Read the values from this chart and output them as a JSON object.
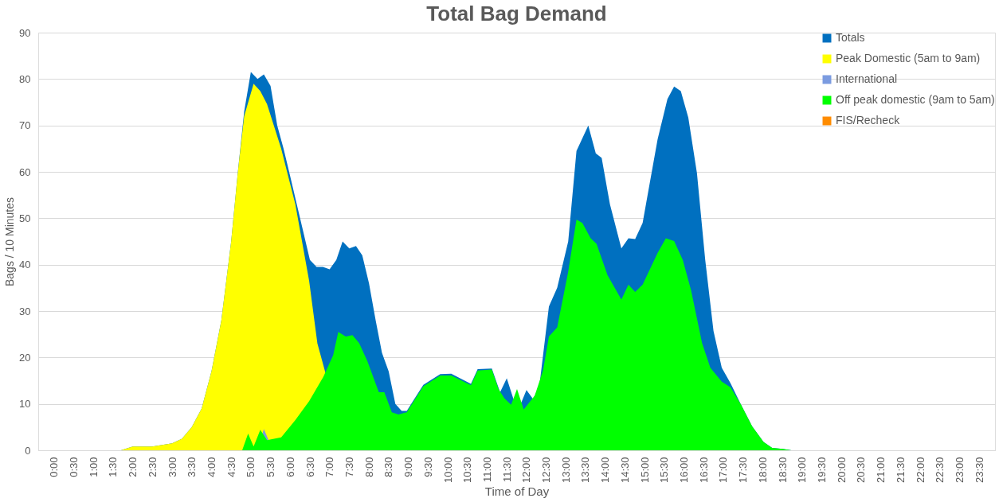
{
  "chart_data": {
    "type": "area",
    "title": "Total Bag Demand",
    "xlabel": "Time of Day",
    "ylabel": "Bags / 10 Minutes",
    "ylim": [
      0,
      90
    ],
    "yticks": [
      0,
      10,
      20,
      30,
      40,
      50,
      60,
      70,
      80,
      90
    ],
    "xlim": [
      -0.4,
      23.9
    ],
    "xticks": [
      {
        "value": 0,
        "label": "0:00"
      },
      {
        "value": 0.5,
        "label": "0:30"
      },
      {
        "value": 1,
        "label": "1:00"
      },
      {
        "value": 1.5,
        "label": "1:30"
      },
      {
        "value": 2,
        "label": "2:00"
      },
      {
        "value": 2.5,
        "label": "2:30"
      },
      {
        "value": 3,
        "label": "3:00"
      },
      {
        "value": 3.5,
        "label": "3:30"
      },
      {
        "value": 4,
        "label": "4:00"
      },
      {
        "value": 4.5,
        "label": "4:30"
      },
      {
        "value": 5,
        "label": "5:00"
      },
      {
        "value": 5.5,
        "label": "5:30"
      },
      {
        "value": 6,
        "label": "6:00"
      },
      {
        "value": 6.5,
        "label": "6:30"
      },
      {
        "value": 7,
        "label": "7:00"
      },
      {
        "value": 7.5,
        "label": "7:30"
      },
      {
        "value": 8,
        "label": "8:00"
      },
      {
        "value": 8.5,
        "label": "8:30"
      },
      {
        "value": 9,
        "label": "9:00"
      },
      {
        "value": 9.5,
        "label": "9:30"
      },
      {
        "value": 10,
        "label": "10:00"
      },
      {
        "value": 10.5,
        "label": "10:30"
      },
      {
        "value": 11,
        "label": "11:00"
      },
      {
        "value": 11.5,
        "label": "11:30"
      },
      {
        "value": 12,
        "label": "12:00"
      },
      {
        "value": 12.5,
        "label": "12:30"
      },
      {
        "value": 13,
        "label": "13:00"
      },
      {
        "value": 13.5,
        "label": "13:30"
      },
      {
        "value": 14,
        "label": "14:00"
      },
      {
        "value": 14.5,
        "label": "14:30"
      },
      {
        "value": 15,
        "label": "15:00"
      },
      {
        "value": 15.5,
        "label": "15:30"
      },
      {
        "value": 16,
        "label": "16:00"
      },
      {
        "value": 16.5,
        "label": "16:30"
      },
      {
        "value": 17,
        "label": "17:00"
      },
      {
        "value": 17.5,
        "label": "17:30"
      },
      {
        "value": 18,
        "label": "18:00"
      },
      {
        "value": 18.5,
        "label": "18:30"
      },
      {
        "value": 19,
        "label": "19:00"
      },
      {
        "value": 19.5,
        "label": "19:30"
      },
      {
        "value": 20,
        "label": "20:00"
      },
      {
        "value": 20.5,
        "label": "20:30"
      },
      {
        "value": 21,
        "label": "21:00"
      },
      {
        "value": 21.5,
        "label": "21:30"
      },
      {
        "value": 22,
        "label": "22:00"
      },
      {
        "value": 22.5,
        "label": "22:30"
      },
      {
        "value": 23,
        "label": "23:00"
      },
      {
        "value": 23.5,
        "label": "23:30"
      }
    ],
    "grid": "y",
    "legend": "top right",
    "series": [
      {
        "name": "Totals",
        "color": "#0070c0",
        "x": [
          1.7,
          2.0,
          2.5,
          3.0,
          3.25,
          3.5,
          3.75,
          4.0,
          4.25,
          4.5,
          4.67,
          4.83,
          5.0,
          5.17,
          5.33,
          5.5,
          5.67,
          5.83,
          6.0,
          6.25,
          6.5,
          6.67,
          6.83,
          7.0,
          7.17,
          7.33,
          7.5,
          7.67,
          7.83,
          8.0,
          8.17,
          8.33,
          8.5,
          8.67,
          8.83,
          8.96,
          9.38,
          9.81,
          10.09,
          10.59,
          10.76,
          11.12,
          11.33,
          11.5,
          11.67,
          11.83,
          12.0,
          12.17,
          12.33,
          12.57,
          12.78,
          13.06,
          13.27,
          13.57,
          13.76,
          13.91,
          14.12,
          14.41,
          14.59,
          14.76,
          14.95,
          15.33,
          15.58,
          15.75,
          15.92,
          16.11,
          16.33,
          16.54,
          16.75,
          16.96,
          17.18,
          17.45,
          17.73,
          18.02,
          18.24,
          18.5,
          18.73
        ],
        "values": [
          0,
          0.8,
          0.8,
          1.5,
          2.5,
          5,
          9,
          17,
          28,
          45,
          60,
          73,
          81.5,
          80,
          81,
          78.5,
          70,
          65,
          59,
          50,
          41,
          39.5,
          39.5,
          39,
          41,
          45,
          43.5,
          44,
          42,
          36,
          28,
          21,
          17,
          10,
          8.5,
          8.5,
          14.1,
          16.4,
          16.5,
          14.3,
          17.5,
          17.6,
          12.5,
          15.5,
          11,
          9.5,
          13,
          11,
          14,
          31,
          35,
          45,
          64.5,
          70,
          64,
          63,
          53,
          43.5,
          45.7,
          45.5,
          49,
          67,
          75.7,
          78.4,
          77.4,
          71.7,
          59.7,
          41,
          25.7,
          17.8,
          14.5,
          9.8,
          5.2,
          1.8,
          0.5,
          0.3,
          0
        ]
      },
      {
        "name": "Peak Domestic (5am to 9am)",
        "color": "#ffff00",
        "x": [
          1.7,
          2.0,
          2.5,
          3.0,
          3.25,
          3.5,
          3.75,
          4.0,
          4.25,
          4.5,
          4.67,
          4.83,
          5.07,
          5.24,
          5.41,
          5.77,
          6.13,
          6.48,
          6.69,
          6.9
        ],
        "values": [
          0,
          0.8,
          0.8,
          1.5,
          2.5,
          5,
          9,
          17,
          28,
          45,
          60,
          72,
          79,
          77.4,
          74.6,
          65,
          53,
          36.5,
          23,
          16.5
        ]
      },
      {
        "name": "International",
        "color": "#7b9be0",
        "x": [
          5.17,
          5.33,
          5.45
        ],
        "values": [
          0,
          4.6,
          2.2
        ]
      },
      {
        "name": "Off peak domestic (9am to 5am)",
        "color": "#00ff00",
        "x": [
          4.78,
          4.93,
          5.07,
          5.24,
          5.41,
          5.77,
          6.13,
          6.48,
          6.84,
          7.09,
          7.22,
          7.41,
          7.58,
          7.75,
          7.96,
          8.25,
          8.39,
          8.58,
          8.75,
          8.96,
          9.38,
          9.81,
          10.09,
          10.59,
          10.76,
          11.12,
          11.29,
          11.44,
          11.61,
          11.76,
          11.93,
          12.21,
          12.42,
          12.57,
          12.78,
          13.06,
          13.27,
          13.42,
          13.63,
          13.78,
          14.06,
          14.41,
          14.59,
          14.76,
          14.95,
          15.33,
          15.54,
          15.75,
          15.97,
          16.18,
          16.46,
          16.67,
          16.96,
          17.18,
          17.45,
          17.73,
          18.02,
          18.24,
          18.5,
          18.73
        ],
        "values": [
          0,
          3.6,
          0.8,
          4.4,
          2.2,
          2.8,
          6.5,
          10.6,
          15.8,
          20.5,
          25.5,
          24.5,
          24.8,
          23.1,
          19.2,
          12.5,
          12.5,
          8.2,
          7.7,
          8.2,
          13.8,
          16.1,
          16.1,
          14,
          17.2,
          17.4,
          13.2,
          11.2,
          9.8,
          13.2,
          8.8,
          11.8,
          17.2,
          24.5,
          26.5,
          38.5,
          49.7,
          49,
          45.7,
          44.5,
          37.7,
          32.5,
          35.7,
          34.1,
          35.7,
          42.5,
          45.7,
          45.1,
          41,
          34.5,
          23.1,
          17.8,
          14.8,
          13.6,
          9.8,
          5.2,
          1.8,
          0.5,
          0.3,
          0
        ]
      },
      {
        "name": "FIS/Recheck",
        "color": "#ff8c00"
      }
    ]
  }
}
